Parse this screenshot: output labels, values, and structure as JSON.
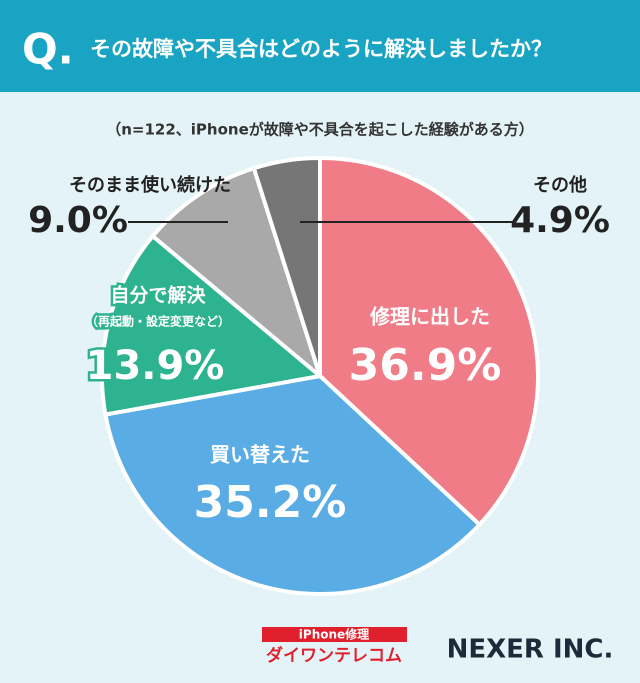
{
  "chart_data": {
    "type": "pie",
    "title_prefix": "Q.",
    "title": "その故障や不具合はどのように解決しましたか？",
    "subtitle": "（n=122、iPhoneが故障や不具合を起こした経験がある方）",
    "categories": [
      "修理に出した",
      "買い替えた",
      "自分で解決",
      "そのまま使い続けた",
      "その他"
    ],
    "sublabels": [
      null,
      null,
      "（再起動・設定変更など）",
      null,
      null
    ],
    "values": [
      36.9,
      35.2,
      13.9,
      9.0,
      4.9
    ],
    "value_labels": [
      "36.9%",
      "35.2%",
      "13.9%",
      "9.0%",
      "4.9%"
    ],
    "colors": [
      "#f07c87",
      "#5aade4",
      "#2db38f",
      "#a9a9a9",
      "#767676"
    ]
  },
  "footer": {
    "logo1_top": "iPhone修理",
    "logo1_main": "ダイワンテレコム",
    "logo2": "NEXER INC."
  }
}
